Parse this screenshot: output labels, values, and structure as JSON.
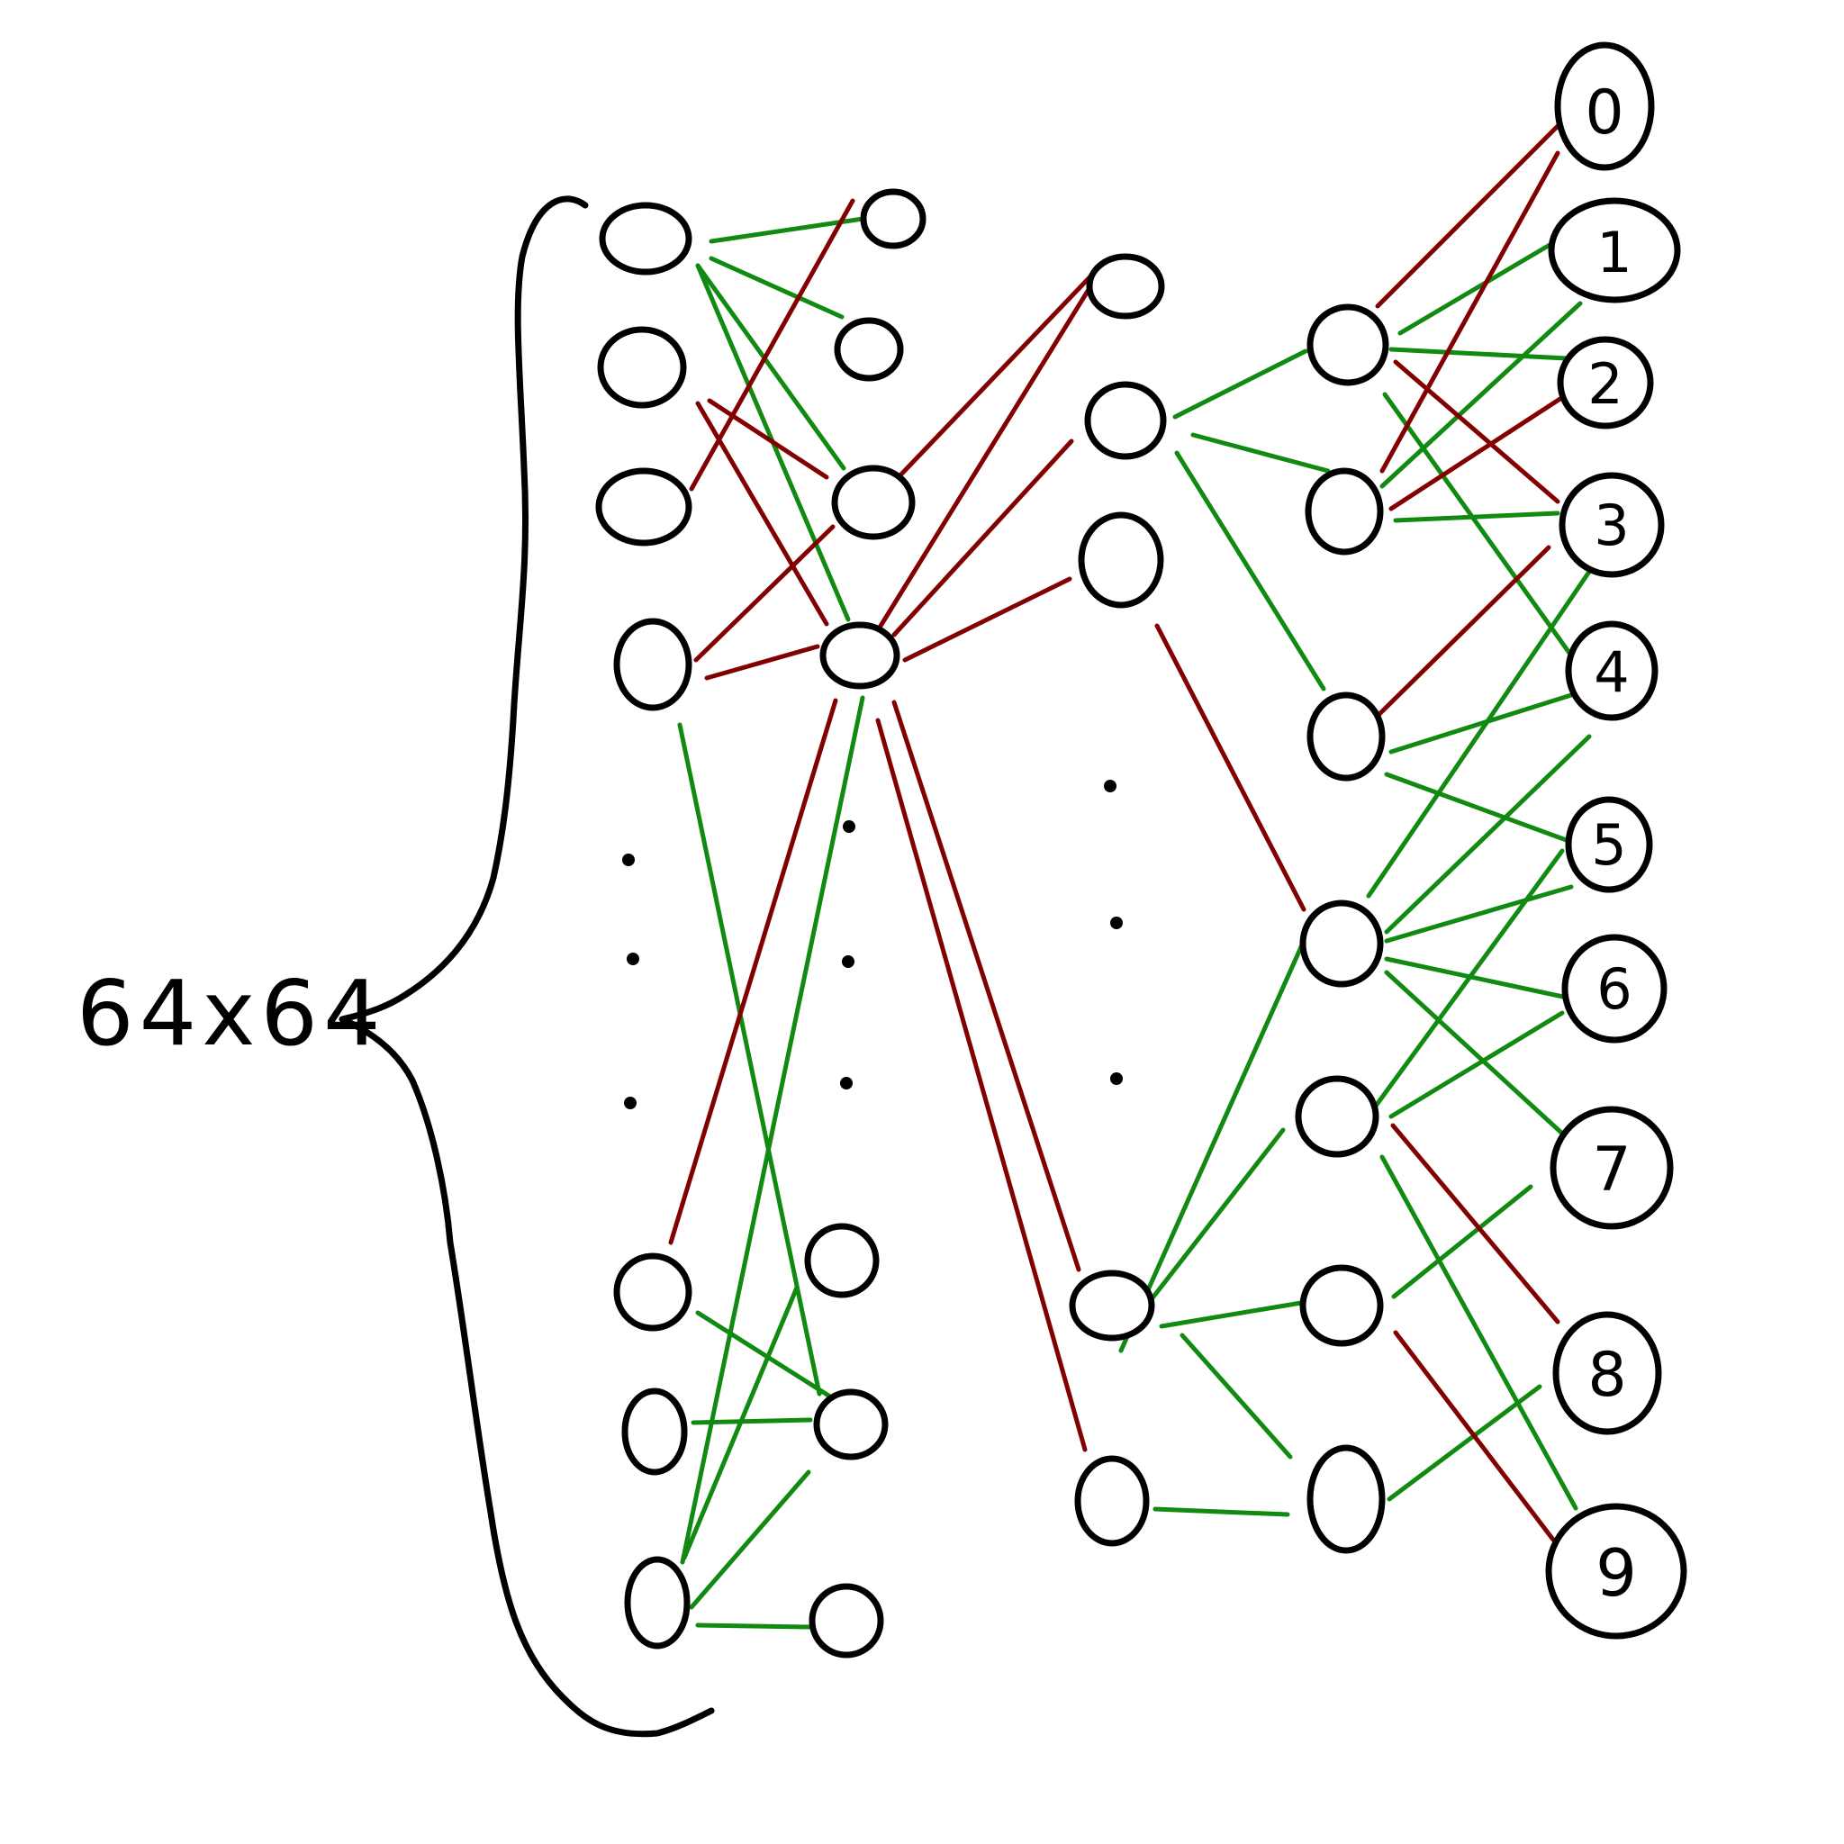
{
  "input_size_label": "64x64",
  "output_labels": [
    "0",
    "1",
    "2",
    "3",
    "4",
    "5",
    "6",
    "7",
    "8",
    "9"
  ],
  "colors": {
    "ink": "#000000",
    "positive_weight": "#118a11",
    "negative_weight": "#820000",
    "background": "#ffffff"
  }
}
